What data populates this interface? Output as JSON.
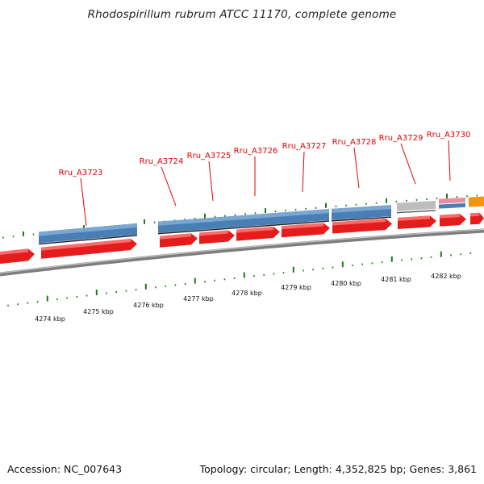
{
  "title": "Rhodospirillum rubrum ATCC 11170, complete genome",
  "footer": {
    "accession": "Accession: NC_007643",
    "summary": "Topology: circular; Length: 4,352,825 bp; Genes: 3,861"
  },
  "colors": {
    "cds_forward": "#e51c1c",
    "cds_blue": "#4a7fb5",
    "gray_feature": "#bdbdbd",
    "pink_feature": "#e68ea0",
    "orange_feature": "#f5940f",
    "tick": "#1e7a1e",
    "label": "#dd0000",
    "backbone": "#7d7d7d"
  },
  "gene_labels": [
    {
      "id": "Rru_A3723"
    },
    {
      "id": "Rru_A3724"
    },
    {
      "id": "Rru_A3725"
    },
    {
      "id": "Rru_A3726"
    },
    {
      "id": "Rru_A3727"
    },
    {
      "id": "Rru_A3728"
    },
    {
      "id": "Rru_A3729"
    },
    {
      "id": "Rru_A3730"
    }
  ],
  "kbp_labels": [
    "4274 kbp",
    "4275 kbp",
    "4276 kbp",
    "4277 kbp",
    "4278 kbp",
    "4279 kbp",
    "4280 kbp",
    "4281 kbp",
    "4282 kbp"
  ]
}
